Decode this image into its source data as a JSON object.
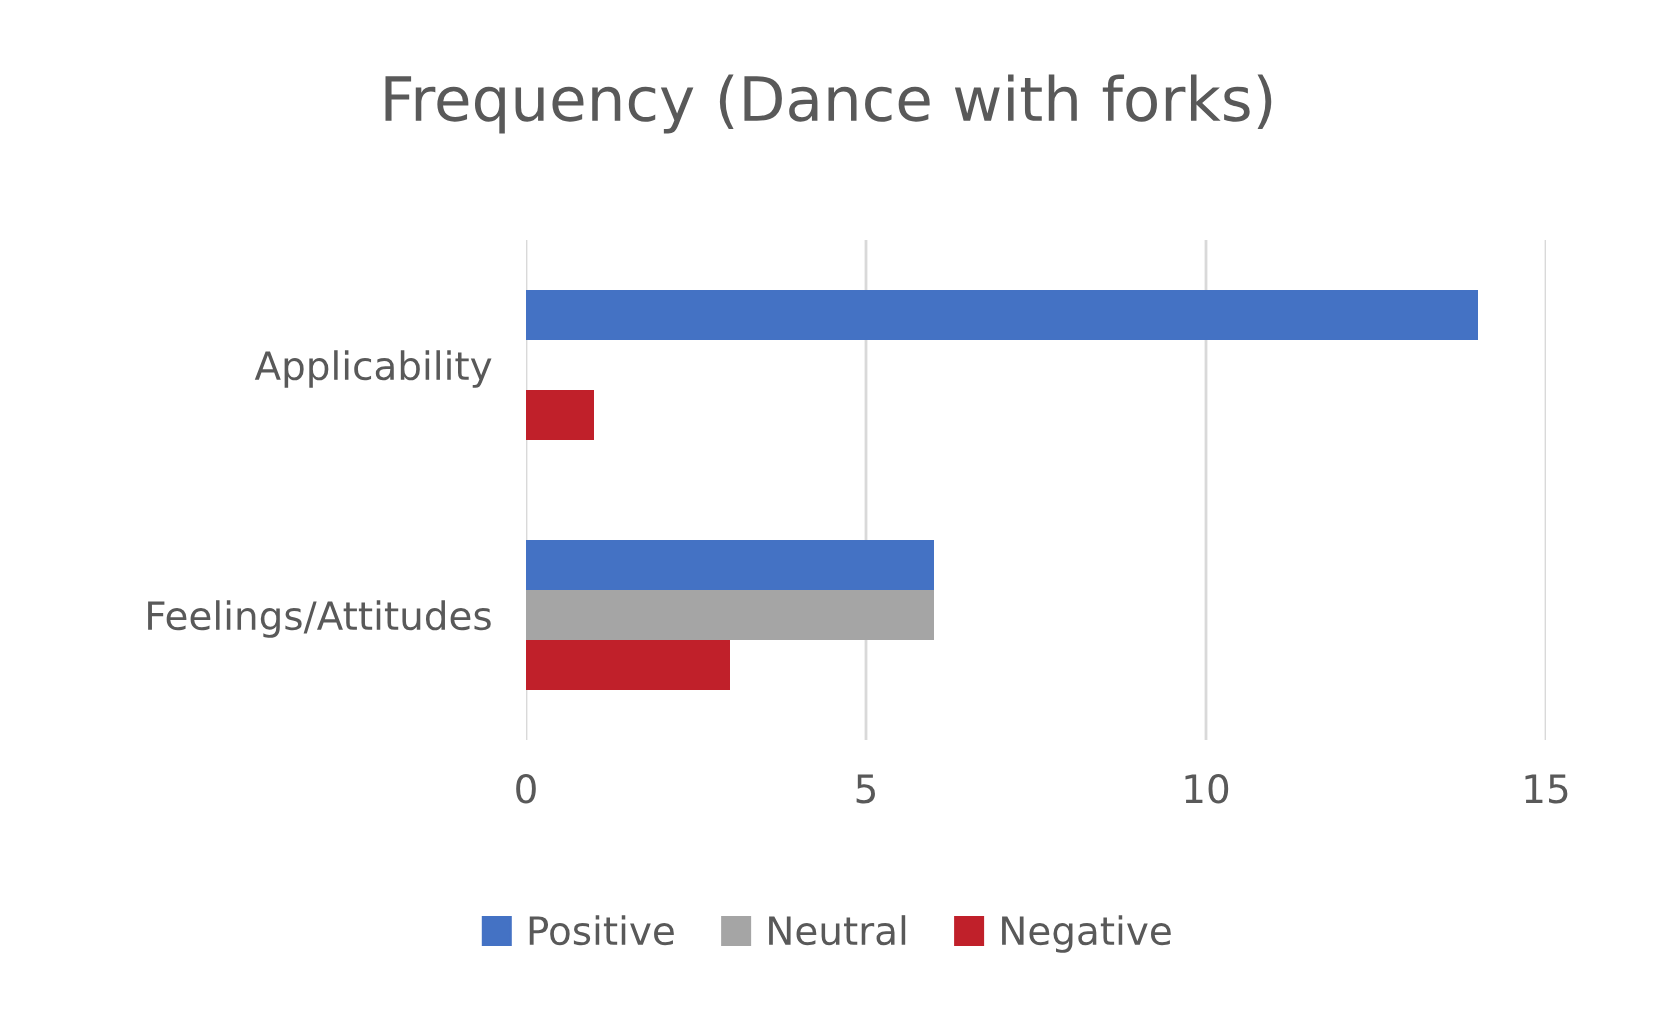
{
  "chart_data": {
    "type": "bar",
    "orientation": "horizontal",
    "title": "Frequency (Dance with forks)",
    "categories": [
      "Applicability",
      "Feelings/Attitudes"
    ],
    "series": [
      {
        "name": "Positive",
        "color": "#4472c4",
        "values": [
          14,
          6
        ]
      },
      {
        "name": "Neutral",
        "color": "#a5a5a5",
        "values": [
          0,
          6
        ]
      },
      {
        "name": "Negative",
        "color": "#c0202a",
        "values": [
          1,
          3
        ]
      }
    ],
    "xlim": [
      0,
      15
    ],
    "xticks": [
      0,
      5,
      10,
      15
    ],
    "grid": "x",
    "legend": "bottom"
  }
}
